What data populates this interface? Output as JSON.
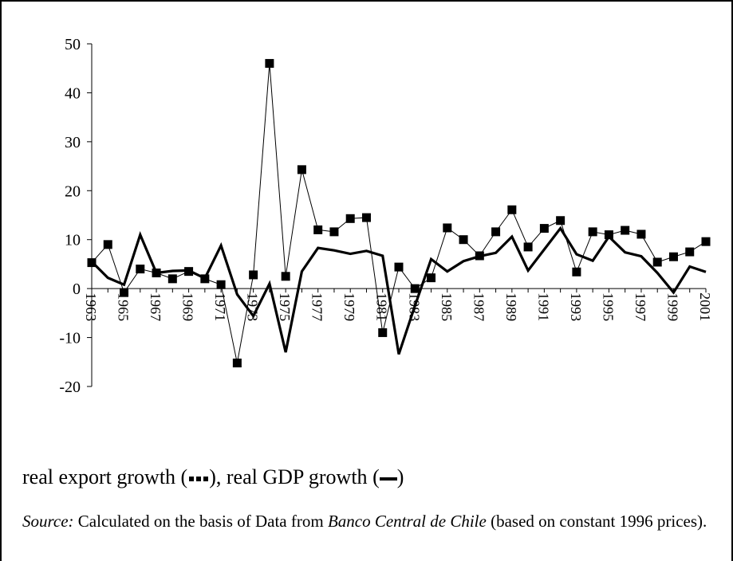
{
  "chart_data": {
    "type": "line",
    "categories": [
      "1963",
      null,
      "1965",
      null,
      "1967",
      null,
      "1969",
      null,
      "1971",
      null,
      "1973",
      null,
      "1975",
      null,
      "1977",
      null,
      "1979",
      null,
      "1981",
      null,
      "1983",
      null,
      "1985",
      null,
      "1987",
      null,
      "1989",
      null,
      "1991",
      null,
      "1993",
      null,
      "1995",
      null,
      "1997",
      null,
      "1999",
      null,
      "2001"
    ],
    "series": [
      {
        "name": "real export growth",
        "color": "#000000",
        "marker": "square",
        "values": [
          5.3,
          9.0,
          -0.8,
          4.0,
          3.2,
          2.0,
          3.5,
          2.0,
          0.8,
          -15.2,
          2.8,
          46.0,
          2.5,
          24.3,
          12.0,
          11.6,
          14.3,
          14.5,
          -9.0,
          4.4,
          0.0,
          2.2,
          12.4,
          10.0,
          6.7,
          11.6,
          16.1,
          8.5,
          12.3,
          13.9,
          3.4,
          11.6,
          11.0,
          11.9,
          11.1,
          5.4,
          6.5,
          7.5,
          9.6
        ]
      },
      {
        "name": "real GDP growth",
        "color": "#000000",
        "marker": "none",
        "values": [
          5.5,
          2.2,
          0.8,
          11.0,
          3.2,
          3.6,
          3.7,
          2.1,
          8.8,
          -1.2,
          -5.6,
          1.0,
          -13.0,
          3.5,
          8.3,
          7.8,
          7.1,
          7.7,
          6.7,
          -13.4,
          -3.5,
          6.0,
          3.5,
          5.6,
          6.6,
          7.3,
          10.6,
          3.7,
          8.0,
          12.3,
          7.0,
          5.7,
          10.6,
          7.4,
          6.6,
          3.2,
          -0.8,
          4.5,
          3.4
        ]
      }
    ],
    "ylim": [
      -20,
      50
    ],
    "yticks": [
      -20,
      -10,
      0,
      10,
      20,
      30,
      40,
      50
    ],
    "grid": false,
    "legend_punctuation": [
      "(",
      "), ",
      ")"
    ],
    "note": {
      "label": "Source:",
      "parts": [
        "Calculated on the basis of Data from",
        "Banco Central de Chile",
        "(based on constant 1996 prices)."
      ]
    }
  }
}
